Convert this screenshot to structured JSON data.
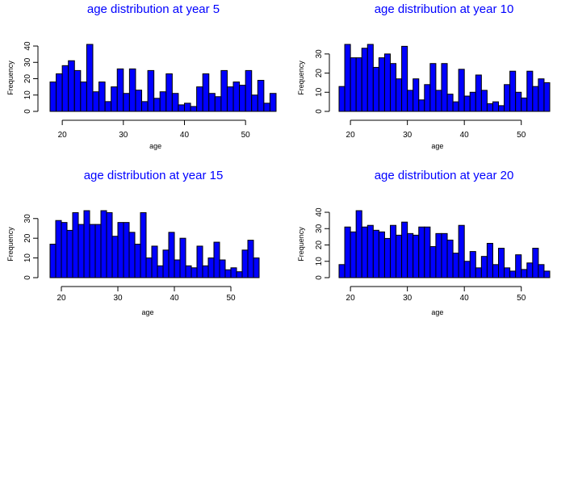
{
  "colors": {
    "bar_fill": "#0000ff",
    "bar_stroke": "#000000",
    "title": "#0000ff",
    "axis": "#000000",
    "background": "#ffffff"
  },
  "chart_data": [
    {
      "type": "bar",
      "title": "age distribution at year 5",
      "xlabel": "age",
      "ylabel": "Frequency",
      "bin_start": 18,
      "bin_width": 1,
      "values": [
        18,
        23,
        28,
        31,
        25,
        18,
        41,
        12,
        18,
        6,
        15,
        26,
        11,
        26,
        13,
        6,
        25,
        8,
        12,
        23,
        11,
        4,
        5,
        3,
        15,
        23,
        11,
        9,
        25,
        15,
        18,
        16,
        25,
        10,
        19,
        5,
        11
      ],
      "x_ticks": [
        20,
        30,
        40,
        50
      ],
      "y_ticks": [
        0,
        10,
        20,
        30,
        40
      ],
      "xlim": [
        18,
        55
      ],
      "ylim": [
        0,
        41
      ]
    },
    {
      "type": "bar",
      "title": "age distribution at year 10",
      "xlabel": "age",
      "ylabel": "Frequency",
      "bin_start": 18,
      "bin_width": 1,
      "values": [
        13,
        35,
        28,
        28,
        33,
        35,
        23,
        28,
        30,
        25,
        17,
        34,
        11,
        17,
        6,
        14,
        25,
        11,
        25,
        9,
        5,
        22,
        8,
        10,
        19,
        11,
        4,
        5,
        3,
        14,
        21,
        10,
        7,
        21,
        13,
        17,
        15
      ],
      "x_ticks": [
        20,
        30,
        40,
        50
      ],
      "y_ticks": [
        0,
        10,
        20,
        30
      ],
      "xlim": [
        18,
        55
      ],
      "ylim": [
        0,
        35
      ]
    },
    {
      "type": "bar",
      "title": "age distribution at year 15",
      "xlabel": "age",
      "ylabel": "Frequency",
      "bin_start": 18,
      "bin_width": 1,
      "values": [
        17,
        29,
        28,
        24,
        33,
        27,
        34,
        27,
        27,
        34,
        33,
        21,
        28,
        28,
        23,
        17,
        33,
        10,
        16,
        6,
        14,
        23,
        9,
        20,
        6,
        5,
        16,
        6,
        10,
        18,
        9,
        4,
        5,
        3,
        14,
        19,
        10
      ],
      "x_ticks": [
        20,
        30,
        40,
        50
      ],
      "y_ticks": [
        0,
        10,
        20,
        30
      ],
      "xlim": [
        18,
        55
      ],
      "ylim": [
        0,
        34
      ]
    },
    {
      "type": "bar",
      "title": "age distribution at year 20",
      "xlabel": "age",
      "ylabel": "Frequency",
      "bin_start": 18,
      "bin_width": 1,
      "values": [
        8,
        31,
        28,
        41,
        31,
        32,
        29,
        28,
        24,
        32,
        26,
        34,
        27,
        26,
        31,
        31,
        19,
        27,
        27,
        23,
        15,
        32,
        10,
        16,
        6,
        13,
        21,
        8,
        18,
        6,
        4,
        14,
        5,
        9,
        18,
        8,
        4
      ],
      "x_ticks": [
        20,
        30,
        40,
        50
      ],
      "y_ticks": [
        0,
        10,
        20,
        30,
        40
      ],
      "xlim": [
        18,
        55
      ],
      "ylim": [
        0,
        41
      ]
    }
  ]
}
